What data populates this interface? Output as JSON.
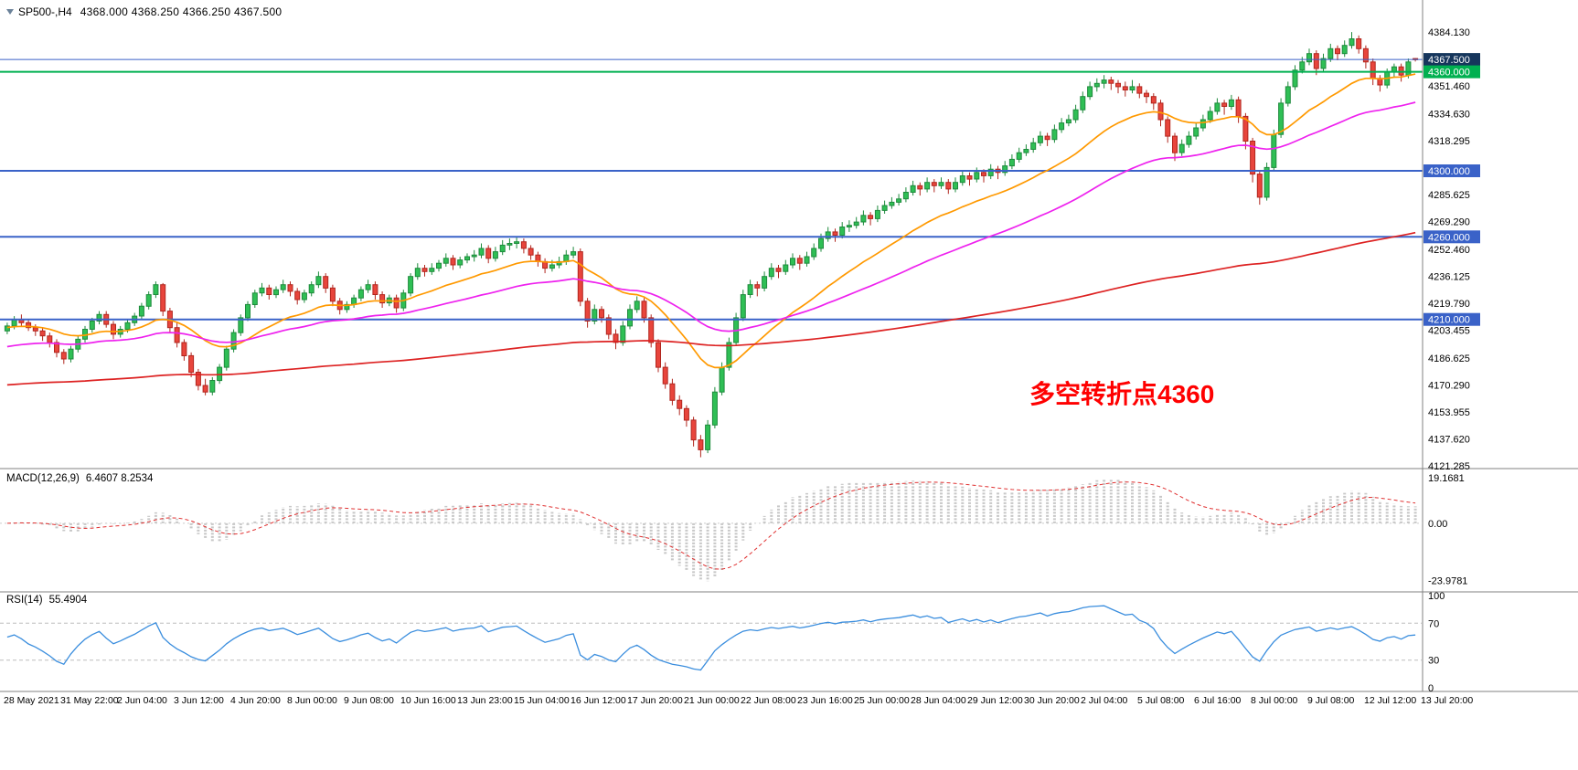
{
  "window": {
    "symbol_period": "SP500-,H4",
    "ohlc_quote": "4368.000 4368.250 4366.250 4367.500"
  },
  "annotation": {
    "text": "多空转折点4360",
    "color": "#FF0000"
  },
  "colors": {
    "background": "#FFFFFF",
    "bull": "#2FBF55",
    "bull_border": "#1E8A3C",
    "bear": "#E8453C",
    "bear_border": "#B1261E",
    "separator": "#808080",
    "axis_text": "#000000",
    "macd_hist": "#C8C8C8",
    "macd_signal": "#E03030",
    "rsi_line": "#3B8EDE",
    "level_dash": "#BDBDBD",
    "tag_text": "#FFFFFF"
  },
  "price_axis": {
    "labels": [
      {
        "label": "4384.130",
        "value": 4384.13
      },
      {
        "label": "4351.460",
        "value": 4351.46
      },
      {
        "label": "4334.630",
        "value": 4334.63
      },
      {
        "label": "4318.295",
        "value": 4318.295
      },
      {
        "label": "4285.625",
        "value": 4285.625
      },
      {
        "label": "4269.290",
        "value": 4269.29
      },
      {
        "label": "4252.460",
        "value": 4252.46
      },
      {
        "label": "4236.125",
        "value": 4236.125
      },
      {
        "label": "4219.790",
        "value": 4219.79
      },
      {
        "label": "4203.455",
        "value": 4203.455
      },
      {
        "label": "4186.625",
        "value": 4186.625
      },
      {
        "label": "4170.290",
        "value": 4170.29
      },
      {
        "label": "4153.955",
        "value": 4153.955
      },
      {
        "label": "4137.620",
        "value": 4137.62
      },
      {
        "label": "4121.285",
        "value": 4121.285
      }
    ]
  },
  "time_axis": {
    "labels": [
      "28 May 2021",
      "31 May 22:00",
      "2 Jun 04:00",
      "3 Jun 12:00",
      "4 Jun 20:00",
      "8 Jun 00:00",
      "9 Jun 08:00",
      "10 Jun 16:00",
      "13 Jun 23:00",
      "15 Jun 04:00",
      "16 Jun 12:00",
      "17 Jun 20:00",
      "21 Jun 00:00",
      "22 Jun 08:00",
      "23 Jun 16:00",
      "25 Jun 00:00",
      "28 Jun 04:00",
      "29 Jun 12:00",
      "30 Jun 20:00",
      "2 Jul 04:00",
      "5 Jul 08:00",
      "6 Jul 16:00",
      "8 Jul 00:00",
      "9 Jul 08:00",
      "12 Jul 12:00",
      "13 Jul 20:00"
    ]
  },
  "indicators": {
    "macd": {
      "label": "MACD(12,26,9)",
      "values_text": "6.4607 8.2534",
      "fast": 12,
      "slow": 26,
      "signal": 9,
      "axis_labels": [
        {
          "label": "19.1681",
          "value": 19.1681
        },
        {
          "label": "0.00",
          "value": 0
        },
        {
          "label": "-23.9781",
          "value": -23.9781
        }
      ]
    },
    "rsi": {
      "label": "RSI(14)",
      "value_text": "55.4904",
      "period": 14,
      "levels": [
        70,
        30
      ],
      "axis_labels": [
        {
          "label": "100",
          "value": 100
        },
        {
          "label": "70",
          "value": 70
        },
        {
          "label": "30",
          "value": 30
        },
        {
          "label": "0",
          "value": 0
        }
      ]
    }
  },
  "chart_data": {
    "type": "candlestick",
    "title": "SP500- H4",
    "timeframe": "H4",
    "ylim": [
      4121.285,
      4384.13
    ],
    "levels": [
      {
        "value": 4367.5,
        "label": "4367.500",
        "color": "#3A62C8",
        "width": 1,
        "tag_bg": "#16365C"
      },
      {
        "value": 4360,
        "label": "4360.000",
        "color": "#00B050",
        "width": 2,
        "tag_bg": "#00B050"
      },
      {
        "value": 4300,
        "label": "4300.000",
        "color": "#3A62C8",
        "width": 2,
        "tag_bg": "#3A62C8"
      },
      {
        "value": 4260,
        "label": "4260.000",
        "color": "#3A62C8",
        "width": 2,
        "tag_bg": "#3A62C8"
      },
      {
        "value": 4210,
        "label": "4210.000",
        "color": "#3A62C8",
        "width": 2,
        "tag_bg": "#3A62C8"
      }
    ],
    "moving_averages": [
      {
        "name": "fast",
        "period": 20,
        "seed": 4205,
        "color": "#FF9900"
      },
      {
        "name": "mid",
        "period": 50,
        "seed": 4193,
        "color": "#EE22EE"
      },
      {
        "name": "slow",
        "period": 250,
        "seed": 4170,
        "color": "#DD2222"
      }
    ],
    "ohlc": [
      [
        4203,
        4208,
        4201,
        4206
      ],
      [
        4206,
        4212,
        4204,
        4210
      ],
      [
        4210,
        4213,
        4206,
        4208
      ],
      [
        4208,
        4210,
        4203,
        4205
      ],
      [
        4205,
        4207,
        4200,
        4203
      ],
      [
        4203,
        4205,
        4197,
        4200
      ],
      [
        4200,
        4202,
        4193,
        4196
      ],
      [
        4196,
        4198,
        4187,
        4190
      ],
      [
        4190,
        4192,
        4183,
        4186
      ],
      [
        4186,
        4194,
        4184,
        4192
      ],
      [
        4192,
        4200,
        4190,
        4198
      ],
      [
        4198,
        4206,
        4196,
        4204
      ],
      [
        4204,
        4211,
        4202,
        4209
      ],
      [
        4209,
        4215,
        4207,
        4213
      ],
      [
        4213,
        4215,
        4205,
        4207
      ],
      [
        4207,
        4209,
        4198,
        4201
      ],
      [
        4201,
        4206,
        4199,
        4204
      ],
      [
        4204,
        4210,
        4202,
        4208
      ],
      [
        4208,
        4214,
        4206,
        4212
      ],
      [
        4212,
        4220,
        4210,
        4218
      ],
      [
        4218,
        4227,
        4216,
        4225
      ],
      [
        4225,
        4233,
        4223,
        4231
      ],
      [
        4231,
        4232,
        4212,
        4215
      ],
      [
        4215,
        4217,
        4202,
        4205
      ],
      [
        4205,
        4208,
        4193,
        4196
      ],
      [
        4196,
        4198,
        4185,
        4188
      ],
      [
        4188,
        4190,
        4175,
        4178
      ],
      [
        4178,
        4180,
        4167,
        4170
      ],
      [
        4170,
        4174,
        4164,
        4166
      ],
      [
        4166,
        4175,
        4164,
        4173
      ],
      [
        4173,
        4183,
        4171,
        4181
      ],
      [
        4181,
        4194,
        4179,
        4192
      ],
      [
        4192,
        4204,
        4190,
        4202
      ],
      [
        4202,
        4213,
        4200,
        4211
      ],
      [
        4211,
        4221,
        4209,
        4219
      ],
      [
        4219,
        4228,
        4217,
        4226
      ],
      [
        4226,
        4232,
        4224,
        4229
      ],
      [
        4229,
        4231,
        4222,
        4225
      ],
      [
        4225,
        4230,
        4223,
        4228
      ],
      [
        4228,
        4234,
        4226,
        4231
      ],
      [
        4231,
        4233,
        4224,
        4227
      ],
      [
        4227,
        4229,
        4219,
        4222
      ],
      [
        4222,
        4228,
        4220,
        4226
      ],
      [
        4226,
        4233,
        4224,
        4231
      ],
      [
        4231,
        4239,
        4229,
        4236
      ],
      [
        4236,
        4238,
        4226,
        4229
      ],
      [
        4229,
        4231,
        4218,
        4221
      ],
      [
        4221,
        4223,
        4213,
        4216
      ],
      [
        4216,
        4221,
        4214,
        4219
      ],
      [
        4219,
        4225,
        4217,
        4223
      ],
      [
        4223,
        4230,
        4221,
        4228
      ],
      [
        4228,
        4234,
        4226,
        4231
      ],
      [
        4231,
        4233,
        4222,
        4225
      ],
      [
        4225,
        4227,
        4217,
        4220
      ],
      [
        4220,
        4225,
        4218,
        4223
      ],
      [
        4223,
        4225,
        4214,
        4217
      ],
      [
        4217,
        4228,
        4215,
        4226
      ],
      [
        4226,
        4238,
        4224,
        4236
      ],
      [
        4236,
        4244,
        4234,
        4241
      ],
      [
        4241,
        4243,
        4236,
        4239
      ],
      [
        4239,
        4244,
        4237,
        4241
      ],
      [
        4241,
        4246,
        4239,
        4244
      ],
      [
        4244,
        4250,
        4242,
        4247
      ],
      [
        4247,
        4249,
        4240,
        4243
      ],
      [
        4243,
        4248,
        4241,
        4246
      ],
      [
        4246,
        4250,
        4244,
        4248
      ],
      [
        4248,
        4252,
        4245,
        4249
      ],
      [
        4249,
        4256,
        4247,
        4253
      ],
      [
        4253,
        4255,
        4244,
        4247
      ],
      [
        4247,
        4254,
        4245,
        4251
      ],
      [
        4251,
        4258,
        4249,
        4255
      ],
      [
        4255,
        4259,
        4252,
        4256
      ],
      [
        4256,
        4260,
        4253,
        4257
      ],
      [
        4257,
        4259,
        4250,
        4253
      ],
      [
        4253,
        4255,
        4246,
        4249
      ],
      [
        4249,
        4251,
        4242,
        4245
      ],
      [
        4245,
        4247,
        4238,
        4241
      ],
      [
        4241,
        4246,
        4239,
        4243
      ],
      [
        4243,
        4248,
        4241,
        4245
      ],
      [
        4245,
        4252,
        4243,
        4249
      ],
      [
        4249,
        4254,
        4247,
        4251
      ],
      [
        4251,
        4253,
        4218,
        4221
      ],
      [
        4221,
        4223,
        4205,
        4209
      ],
      [
        4209,
        4219,
        4207,
        4216
      ],
      [
        4216,
        4218,
        4208,
        4211
      ],
      [
        4211,
        4213,
        4198,
        4201
      ],
      [
        4201,
        4204,
        4192,
        4196
      ],
      [
        4196,
        4209,
        4194,
        4206
      ],
      [
        4206,
        4219,
        4204,
        4216
      ],
      [
        4216,
        4224,
        4214,
        4221
      ],
      [
        4221,
        4223,
        4208,
        4211
      ],
      [
        4211,
        4213,
        4193,
        4196
      ],
      [
        4196,
        4198,
        4178,
        4181
      ],
      [
        4181,
        4184,
        4168,
        4171
      ],
      [
        4171,
        4174,
        4158,
        4161
      ],
      [
        4161,
        4164,
        4152,
        4156
      ],
      [
        4156,
        4158,
        4145,
        4149
      ],
      [
        4149,
        4151,
        4133,
        4137
      ],
      [
        4137,
        4140,
        4126.5,
        4131
      ],
      [
        4131,
        4149,
        4129,
        4146
      ],
      [
        4146,
        4169,
        4144,
        4166
      ],
      [
        4166,
        4184,
        4164,
        4181
      ],
      [
        4181,
        4199,
        4179,
        4196
      ],
      [
        4196,
        4214,
        4194,
        4211
      ],
      [
        4211,
        4228,
        4209,
        4225
      ],
      [
        4225,
        4234,
        4223,
        4231
      ],
      [
        4231,
        4233,
        4224,
        4229
      ],
      [
        4229,
        4239,
        4227,
        4236
      ],
      [
        4236,
        4244,
        4234,
        4241
      ],
      [
        4241,
        4243,
        4235,
        4239
      ],
      [
        4239,
        4246,
        4237,
        4243
      ],
      [
        4243,
        4250,
        4241,
        4247
      ],
      [
        4247,
        4249,
        4240,
        4244
      ],
      [
        4244,
        4251,
        4242,
        4248
      ],
      [
        4248,
        4256,
        4246,
        4253
      ],
      [
        4253,
        4262,
        4251,
        4259
      ],
      [
        4259,
        4266,
        4257,
        4263
      ],
      [
        4263,
        4265,
        4257,
        4261
      ],
      [
        4261,
        4269,
        4259,
        4266
      ],
      [
        4266,
        4270,
        4263,
        4267
      ],
      [
        4267,
        4272,
        4265,
        4269
      ],
      [
        4269,
        4276,
        4267,
        4273
      ],
      [
        4273,
        4275,
        4267,
        4271
      ],
      [
        4271,
        4279,
        4269,
        4276
      ],
      [
        4276,
        4282,
        4274,
        4279
      ],
      [
        4279,
        4284,
        4277,
        4281
      ],
      [
        4281,
        4286,
        4279,
        4283
      ],
      [
        4283,
        4290,
        4281,
        4287
      ],
      [
        4287,
        4294,
        4285,
        4291
      ],
      [
        4291,
        4293,
        4285,
        4289
      ],
      [
        4289,
        4296,
        4287,
        4293
      ],
      [
        4293,
        4295,
        4287,
        4291
      ],
      [
        4291,
        4296,
        4289,
        4293
      ],
      [
        4293,
        4295,
        4286,
        4289
      ],
      [
        4289,
        4296,
        4287,
        4293
      ],
      [
        4293,
        4300,
        4291,
        4297
      ],
      [
        4297,
        4299,
        4291,
        4295
      ],
      [
        4295,
        4302,
        4293,
        4299
      ],
      [
        4299,
        4301,
        4293,
        4297
      ],
      [
        4297,
        4304,
        4295,
        4301
      ],
      [
        4301,
        4303,
        4295,
        4299
      ],
      [
        4299,
        4306,
        4297,
        4303
      ],
      [
        4303,
        4310,
        4301,
        4307
      ],
      [
        4307,
        4314,
        4305,
        4311
      ],
      [
        4311,
        4316,
        4309,
        4313
      ],
      [
        4313,
        4320,
        4311,
        4317
      ],
      [
        4317,
        4324,
        4315,
        4321
      ],
      [
        4321,
        4323,
        4315,
        4319
      ],
      [
        4319,
        4328,
        4317,
        4325
      ],
      [
        4325,
        4332,
        4323,
        4329
      ],
      [
        4329,
        4334,
        4327,
        4331
      ],
      [
        4331,
        4340,
        4329,
        4337
      ],
      [
        4337,
        4348,
        4335,
        4345
      ],
      [
        4345,
        4354,
        4343,
        4351
      ],
      [
        4351,
        4356,
        4348,
        4353
      ],
      [
        4353,
        4358,
        4350,
        4355
      ],
      [
        4355,
        4357,
        4349,
        4353
      ],
      [
        4353,
        4355,
        4347,
        4351
      ],
      [
        4351,
        4354,
        4345,
        4349
      ],
      [
        4349,
        4355,
        4347,
        4351
      ],
      [
        4351,
        4353,
        4344,
        4347
      ],
      [
        4347,
        4349,
        4341,
        4345
      ],
      [
        4345,
        4347,
        4337,
        4341
      ],
      [
        4341,
        4343,
        4327,
        4331
      ],
      [
        4331,
        4333,
        4317,
        4321
      ],
      [
        4321,
        4323,
        4306,
        4311
      ],
      [
        4311,
        4319,
        4309,
        4316
      ],
      [
        4316,
        4324,
        4314,
        4321
      ],
      [
        4321,
        4329,
        4319,
        4326
      ],
      [
        4326,
        4334,
        4324,
        4331
      ],
      [
        4331,
        4339,
        4329,
        4336
      ],
      [
        4336,
        4344,
        4334,
        4341
      ],
      [
        4341,
        4343,
        4334,
        4339
      ],
      [
        4339,
        4346,
        4337,
        4343
      ],
      [
        4343,
        4345,
        4329,
        4333
      ],
      [
        4333,
        4335,
        4313,
        4318
      ],
      [
        4318,
        4320,
        4293,
        4298
      ],
      [
        4298,
        4300,
        4279.5,
        4284
      ],
      [
        4284,
        4305,
        4282,
        4302
      ],
      [
        4302,
        4325,
        4300,
        4322
      ],
      [
        4322,
        4344,
        4320,
        4341
      ],
      [
        4341,
        4354,
        4339,
        4351
      ],
      [
        4351,
        4364,
        4349,
        4361
      ],
      [
        4361,
        4369,
        4359,
        4366
      ],
      [
        4366,
        4374,
        4364,
        4371
      ],
      [
        4371,
        4373,
        4358,
        4362
      ],
      [
        4362,
        4371,
        4360,
        4368
      ],
      [
        4368,
        4377,
        4366,
        4374
      ],
      [
        4374,
        4376,
        4367,
        4371
      ],
      [
        4371,
        4379,
        4369,
        4376
      ],
      [
        4376,
        4384.1,
        4374,
        4380
      ],
      [
        4380,
        4382,
        4371,
        4374
      ],
      [
        4374,
        4376,
        4362,
        4366
      ],
      [
        4366,
        4368,
        4352,
        4356
      ],
      [
        4356,
        4358,
        4348,
        4352
      ],
      [
        4352,
        4362,
        4350,
        4360
      ],
      [
        4360,
        4365,
        4357,
        4363
      ],
      [
        4363,
        4365,
        4354,
        4358
      ],
      [
        4358,
        4368,
        4356,
        4366
      ],
      [
        4368,
        4368.25,
        4366.25,
        4367.5
      ]
    ]
  }
}
